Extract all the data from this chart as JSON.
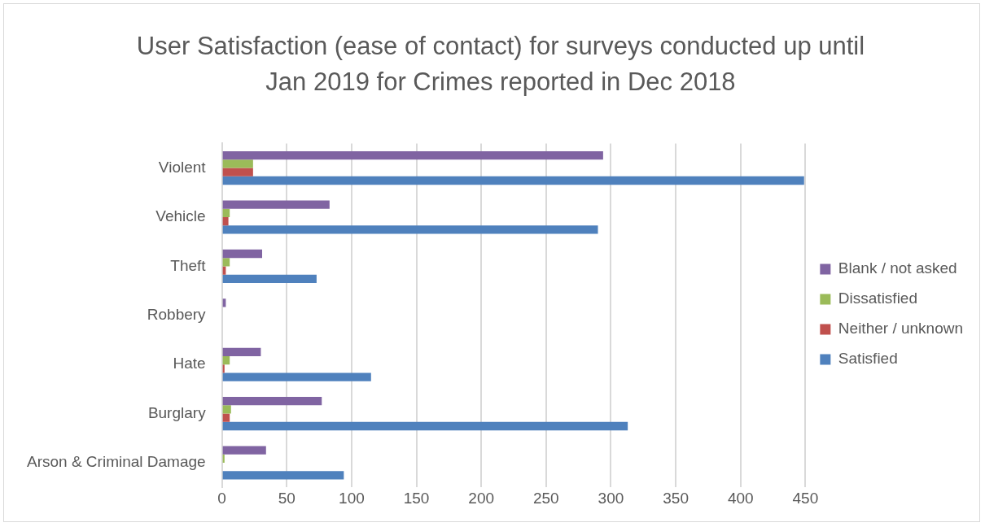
{
  "chart_data": {
    "type": "bar",
    "orientation": "horizontal",
    "title": "User Satisfaction (ease of contact) for surveys conducted up until Jan 2019 for Crimes reported in Dec 2018",
    "categories": [
      "Violent",
      "Vehicle",
      "Theft",
      "Robbery",
      "Hate",
      "Burglary",
      "Arson & Criminal Damage"
    ],
    "series": [
      {
        "name": "Blank / not asked",
        "color": "#8064a2",
        "values": [
          294,
          83,
          31,
          3,
          30,
          77,
          34
        ]
      },
      {
        "name": "Dissatisfied",
        "color": "#9bbb59",
        "values": [
          24,
          6,
          6,
          0,
          6,
          7,
          2
        ]
      },
      {
        "name": "Neither / unknown",
        "color": "#c0504d",
        "values": [
          24,
          5,
          3,
          0,
          2,
          6,
          0
        ]
      },
      {
        "name": "Satisfied",
        "color": "#4f81bd",
        "values": [
          449,
          290,
          73,
          null,
          115,
          313,
          94
        ]
      }
    ],
    "xlim": [
      0,
      450
    ],
    "xticks": [
      0,
      50,
      100,
      150,
      200,
      250,
      300,
      350,
      400,
      450
    ],
    "grid": "x",
    "legend": "right"
  }
}
